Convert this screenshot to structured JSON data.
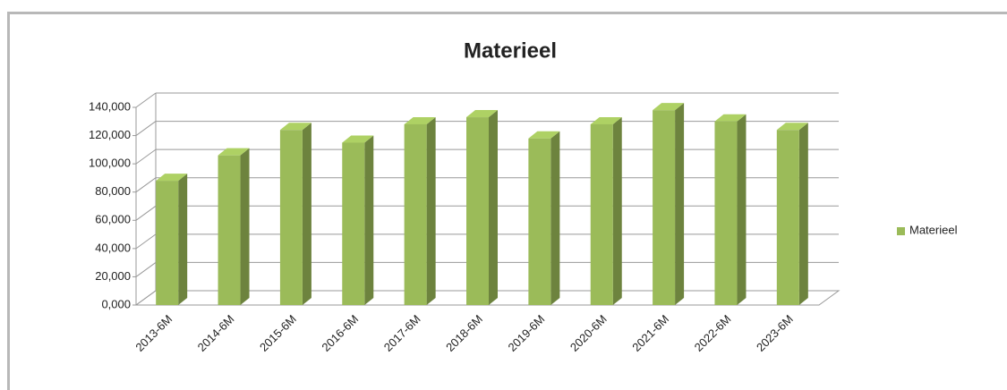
{
  "chart_data": {
    "type": "bar3d",
    "title": "Materieel",
    "categories": [
      "2013-6M",
      "2014-6M",
      "2015-6M",
      "2016-6M",
      "2017-6M",
      "2018-6M",
      "2019-6M",
      "2020-6M",
      "2021-6M",
      "2022-6M",
      "2023-6M"
    ],
    "series": [
      {
        "name": "Materieel",
        "color": "#9bbb59",
        "values": [
          88000,
          106000,
          124000,
          115000,
          128000,
          133000,
          118000,
          128000,
          138000,
          130000,
          124000
        ]
      }
    ],
    "ylim": [
      0,
      140000
    ],
    "yticks": [
      {
        "value": 0,
        "label": "0,000"
      },
      {
        "value": 20000,
        "label": "20,000"
      },
      {
        "value": 40000,
        "label": "40,000"
      },
      {
        "value": 60000,
        "label": "60,000"
      },
      {
        "value": 80000,
        "label": "80,000"
      },
      {
        "value": 100000,
        "label": "100,000"
      },
      {
        "value": 120000,
        "label": "120,000"
      },
      {
        "value": 140000,
        "label": "140,000"
      }
    ],
    "grid": true,
    "legend": "right"
  }
}
